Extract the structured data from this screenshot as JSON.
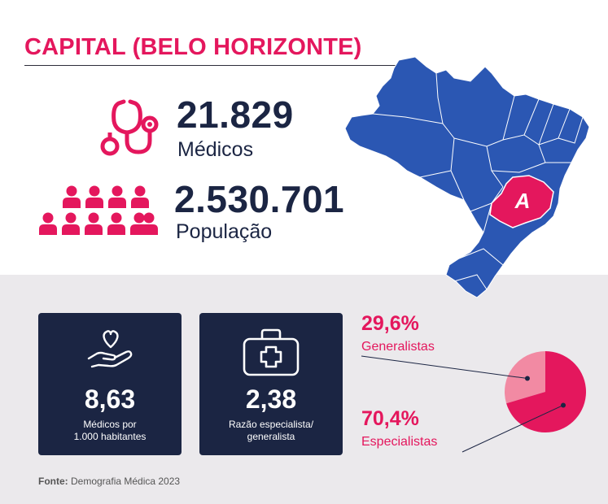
{
  "header": {
    "title": "CAPITAL (BELO HORIZONTE)"
  },
  "stats": {
    "doctors": {
      "value": "21.829",
      "label": "Médicos",
      "icon": "stethoscope-icon"
    },
    "population": {
      "value": "2.530.701",
      "label": "População",
      "icon": "people-icon"
    }
  },
  "cards": [
    {
      "value": "8,63",
      "label_line1": "Médicos por",
      "label_line2": "1.000 habitantes",
      "icon": "heart-hand-icon"
    },
    {
      "value": "2,38",
      "label_line1": "Razão especialista/",
      "label_line2": "generalista",
      "icon": "medical-kit-icon"
    }
  ],
  "chart_data": {
    "type": "pie",
    "slices": [
      {
        "label": "Generalistas",
        "value": 29.6,
        "display": "29,6%",
        "color": "#f28aa3"
      },
      {
        "label": "Especialistas",
        "value": 70.4,
        "display": "70,4%",
        "color": "#e4175d"
      }
    ]
  },
  "map": {
    "marker_letter": "A",
    "highlight_color": "#e4175d",
    "base_color": "#2b57b3"
  },
  "source": {
    "prefix": "Fonte:",
    "text": "Demografia Médica 2023"
  },
  "colors": {
    "accent": "#e4175d",
    "navy": "#1b2543",
    "band": "#ebe9ec"
  }
}
